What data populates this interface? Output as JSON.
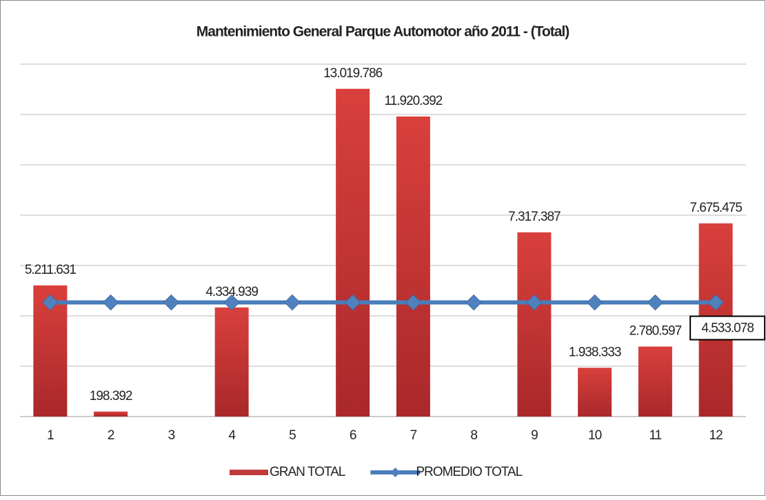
{
  "chart_data": {
    "type": "bar",
    "title": "Mantenimiento General Parque Automotor año 2011 - (Total)",
    "categories": [
      "1",
      "2",
      "3",
      "4",
      "5",
      "6",
      "7",
      "8",
      "9",
      "10",
      "11",
      "12"
    ],
    "series": [
      {
        "name": "GRAN TOTAL",
        "type": "bar",
        "color": "#c0393b",
        "values": [
          5211631,
          198392,
          null,
          4334939,
          null,
          13019786,
          11920392,
          null,
          7317387,
          1938333,
          2780597,
          7675475
        ],
        "value_labels": [
          "5.211.631",
          "198.392",
          null,
          "4.334.939",
          null,
          "13.019.786",
          "11.920.392",
          null,
          "7.317.387",
          "1.938.333",
          "2.780.597",
          "7.675.475"
        ]
      },
      {
        "name": "PROMEDIO TOTAL",
        "type": "line",
        "color": "#4a7ebb",
        "values": [
          4533078,
          4533078,
          4533078,
          4533078,
          4533078,
          4533078,
          4533078,
          4533078,
          4533078,
          4533078,
          4533078,
          4533078
        ],
        "value_labels": [
          null,
          null,
          null,
          null,
          null,
          null,
          null,
          null,
          null,
          null,
          null,
          "4.533.078"
        ]
      }
    ],
    "ylim": [
      0,
      14000000
    ],
    "yticks": [
      0,
      2000000,
      4000000,
      6000000,
      8000000,
      10000000,
      12000000,
      14000000
    ],
    "grid": true,
    "legend": "bottom"
  }
}
